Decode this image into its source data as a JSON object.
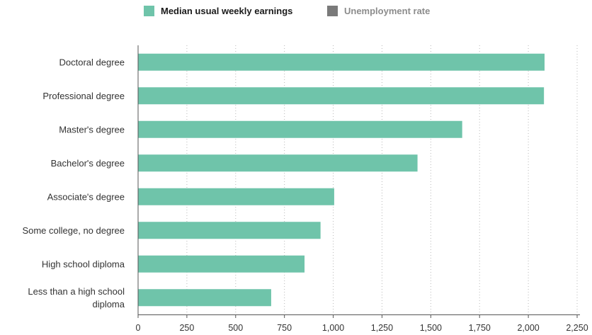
{
  "legend": {
    "items": [
      {
        "label": "Median usual weekly earnings",
        "color": "#6fc4aa",
        "active": true
      },
      {
        "label": "Unemployment rate",
        "color": "#7a7a7a",
        "active": false
      }
    ]
  },
  "chart_data": {
    "type": "bar",
    "orientation": "horizontal",
    "categories": [
      "Doctoral degree",
      "Professional degree",
      "Master's degree",
      "Bachelor's degree",
      "Associate's degree",
      "Some college, no degree",
      "High school diploma",
      "Less than a high school diploma"
    ],
    "series": [
      {
        "name": "Median usual weekly earnings",
        "color": "#6fc4aa",
        "values": [
          2083,
          2080,
          1661,
          1432,
          1005,
          935,
          853,
          682
        ]
      }
    ],
    "xlim": [
      0,
      2250
    ],
    "xticks": [
      0,
      250,
      500,
      750,
      1000,
      1250,
      1500,
      1750,
      2000,
      2250
    ],
    "xtick_labels": [
      "0",
      "250",
      "500",
      "750",
      "1,000",
      "1,250",
      "1,500",
      "1,750",
      "2,000",
      "2,250"
    ],
    "grid": "vertical-dotted",
    "legend_position": "top",
    "title": "",
    "xlabel": "",
    "ylabel": ""
  }
}
